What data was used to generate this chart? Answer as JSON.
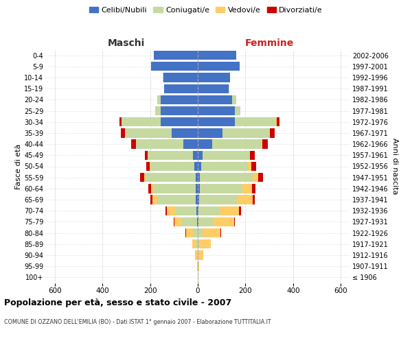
{
  "age_groups": [
    "100+",
    "95-99",
    "90-94",
    "85-89",
    "80-84",
    "75-79",
    "70-74",
    "65-69",
    "60-64",
    "55-59",
    "50-54",
    "45-49",
    "40-44",
    "35-39",
    "30-34",
    "25-29",
    "20-24",
    "15-19",
    "10-14",
    "5-9",
    "0-4"
  ],
  "birth_years": [
    "≤ 1906",
    "1907-1911",
    "1912-1916",
    "1917-1921",
    "1922-1926",
    "1927-1931",
    "1932-1936",
    "1937-1941",
    "1942-1946",
    "1947-1951",
    "1952-1956",
    "1957-1961",
    "1962-1966",
    "1967-1971",
    "1972-1976",
    "1977-1981",
    "1982-1986",
    "1987-1991",
    "1992-1996",
    "1997-2001",
    "2002-2006"
  ],
  "male_celibe": [
    0,
    0,
    0,
    0,
    0,
    3,
    5,
    10,
    10,
    10,
    15,
    20,
    60,
    110,
    155,
    155,
    155,
    140,
    145,
    195,
    185
  ],
  "male_coniugato": [
    0,
    0,
    3,
    5,
    20,
    65,
    90,
    160,
    175,
    210,
    185,
    190,
    200,
    195,
    165,
    25,
    15,
    2,
    1,
    0,
    0
  ],
  "male_vedovo": [
    0,
    2,
    8,
    18,
    30,
    30,
    35,
    20,
    10,
    5,
    2,
    1,
    0,
    0,
    0,
    0,
    0,
    0,
    0,
    0,
    0
  ],
  "male_divorziato": [
    0,
    0,
    0,
    0,
    3,
    3,
    5,
    8,
    12,
    18,
    15,
    12,
    20,
    18,
    8,
    0,
    0,
    0,
    0,
    0,
    0
  ],
  "female_nubile": [
    0,
    0,
    0,
    0,
    0,
    2,
    3,
    5,
    8,
    10,
    15,
    20,
    60,
    105,
    155,
    155,
    145,
    130,
    135,
    175,
    160
  ],
  "female_coniugata": [
    0,
    0,
    2,
    5,
    20,
    60,
    90,
    160,
    180,
    220,
    195,
    195,
    205,
    195,
    175,
    25,
    15,
    2,
    1,
    0,
    0
  ],
  "female_vedova": [
    2,
    5,
    20,
    50,
    75,
    90,
    80,
    65,
    40,
    25,
    15,
    5,
    5,
    2,
    2,
    0,
    0,
    0,
    0,
    0,
    0
  ],
  "female_divorziata": [
    0,
    0,
    0,
    0,
    3,
    3,
    8,
    10,
    15,
    20,
    20,
    18,
    25,
    20,
    12,
    0,
    0,
    0,
    0,
    0,
    0
  ],
  "colors": {
    "celibe": "#4472C4",
    "coniugato": "#C5D9A0",
    "vedovo": "#FFCC66",
    "divorziato": "#CC0000"
  },
  "xlim": [
    -640,
    640
  ],
  "xticks": [
    -600,
    -400,
    -200,
    0,
    200,
    400,
    600
  ],
  "xticklabels": [
    "600",
    "400",
    "200",
    "0",
    "200",
    "400",
    "600"
  ],
  "title": "Popolazione per età, sesso e stato civile - 2007",
  "subtitle": "COMUNE DI OZZANO DELL'EMILIA (BO) - Dati ISTAT 1° gennaio 2007 - Elaborazione TUTTITALIA.IT",
  "ylabel_left": "Fasce di età",
  "ylabel_right": "Anni di nascita",
  "label_maschi": "Maschi",
  "label_femmine": "Femmine",
  "legend_labels": [
    "Celibi/Nubili",
    "Coniugati/e",
    "Vedovi/e",
    "Divorziati/e"
  ],
  "bar_height": 0.82,
  "grid_color": "#cccccc",
  "background_color": "#ffffff",
  "maschi_color": "#333333",
  "femmine_color": "#CC2222"
}
